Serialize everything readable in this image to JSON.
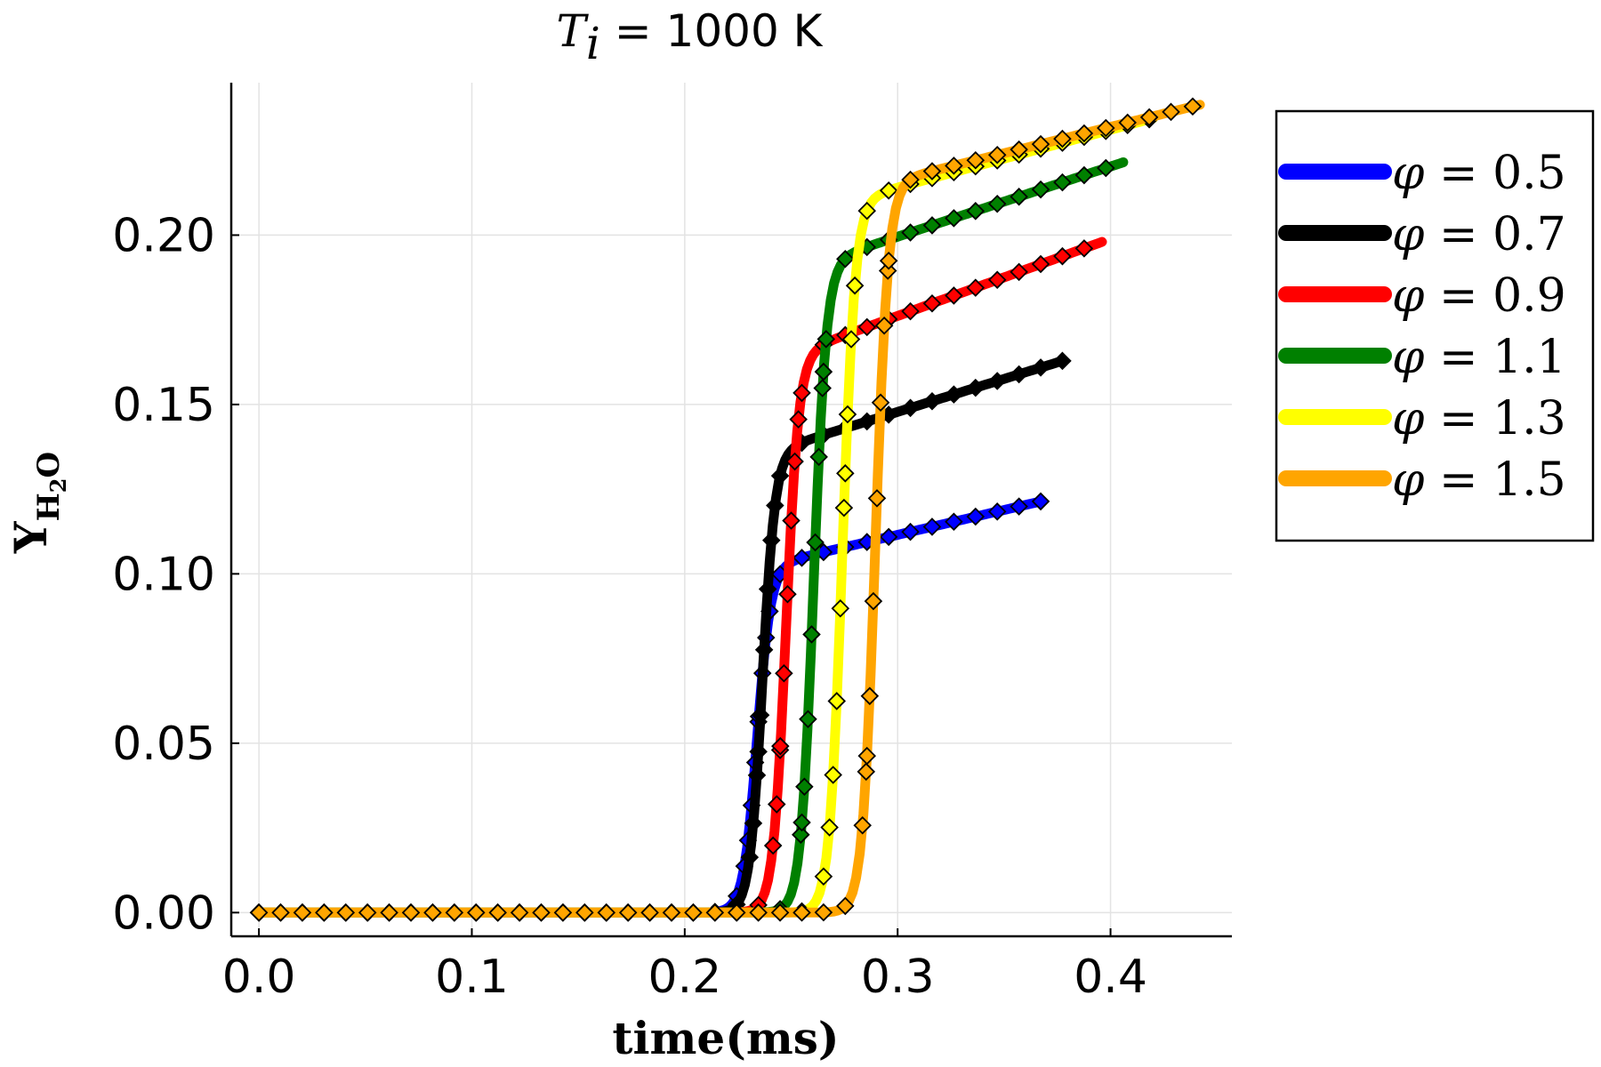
{
  "chart_data": {
    "type": "line",
    "title": {
      "variable": "T",
      "subscript": "i",
      "equals": " = ",
      "value": "1000 K"
    },
    "xlabel": "time(ms)",
    "ylabel": {
      "main": "Y",
      "sub1": "H",
      "sub2": "2",
      "sub3": "O"
    },
    "xlim": [
      -0.013,
      0.457
    ],
    "ylim": [
      -0.007,
      0.245
    ],
    "xticks": [
      0.0,
      0.1,
      0.2,
      0.3,
      0.4
    ],
    "xtick_labels": [
      "0.0",
      "0.1",
      "0.2",
      "0.3",
      "0.4"
    ],
    "yticks": [
      0.0,
      0.05,
      0.1,
      0.15,
      0.2
    ],
    "ytick_labels": [
      "0.00",
      "0.05",
      "0.10",
      "0.15",
      "0.20"
    ],
    "grid": true,
    "legend_position": "outside-right-top",
    "marker": "diamond",
    "series": [
      {
        "name": "φ = 0.5",
        "phi_symbol": "φ",
        "phi_value": "0.5",
        "color": "#0000ff",
        "t_end": 0.368,
        "t_ign": 0.234,
        "width": 0.0032,
        "y_plateau": 0.103,
        "y_final": 0.1215
      },
      {
        "name": "φ = 0.7",
        "phi_symbol": "φ",
        "phi_value": "0.7",
        "color": "#000000",
        "t_end": 0.378,
        "t_ign": 0.2365,
        "width": 0.003,
        "y_plateau": 0.137,
        "y_final": 0.163
      },
      {
        "name": "φ = 0.9",
        "phi_symbol": "φ",
        "phi_value": "0.9",
        "color": "#ff0000",
        "t_end": 0.396,
        "t_ign": 0.2475,
        "width": 0.003,
        "y_plateau": 0.166,
        "y_final": 0.198
      },
      {
        "name": "φ = 1.1",
        "phi_symbol": "φ",
        "phi_value": "1.1",
        "color": "#008000",
        "t_end": 0.406,
        "t_ign": 0.2605,
        "width": 0.003,
        "y_plateau": 0.193,
        "y_final": 0.2215
      },
      {
        "name": "φ = 1.3",
        "phi_symbol": "φ",
        "phi_value": "1.3",
        "color": "#ffff00",
        "t_end": 0.42,
        "t_ign": 0.274,
        "width": 0.003,
        "y_plateau": 0.211,
        "y_final": 0.2345
      },
      {
        "name": "φ = 1.5",
        "phi_symbol": "φ",
        "phi_value": "1.5",
        "color": "#ffa500",
        "t_end": 0.442,
        "t_ign": 0.2895,
        "width": 0.003,
        "y_plateau": 0.216,
        "y_final": 0.2385
      }
    ]
  }
}
